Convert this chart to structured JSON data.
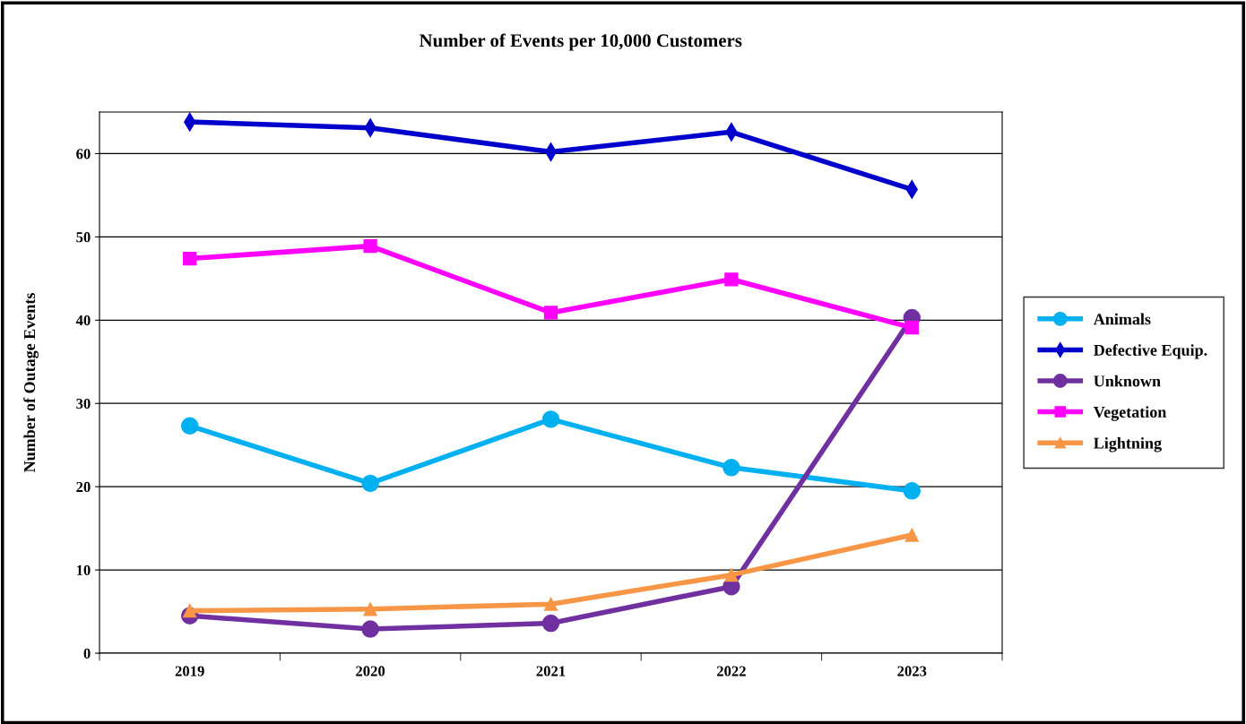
{
  "chart_data": {
    "type": "line",
    "title": "Number of Events per 10,000 Customers",
    "ylabel": "Number of Outage Events",
    "categories": [
      "2019",
      "2020",
      "2021",
      "2022",
      "2023"
    ],
    "series": [
      {
        "name": "Animals",
        "color": "#00b0f0",
        "marker": "circle",
        "values": [
          27.3,
          20.4,
          28.1,
          22.3,
          19.5
        ]
      },
      {
        "name": "Defective Equip.",
        "color": "#0000cc",
        "marker": "diamond",
        "values": [
          63.8,
          63.1,
          60.2,
          62.6,
          55.7
        ]
      },
      {
        "name": "Unknown",
        "color": "#7030a0",
        "marker": "circle",
        "values": [
          4.5,
          2.9,
          3.6,
          8.0,
          40.3
        ]
      },
      {
        "name": "Vegetation",
        "color": "#ff00ff",
        "marker": "square",
        "values": [
          47.4,
          48.9,
          40.9,
          44.9,
          39.1
        ]
      },
      {
        "name": "Lightning",
        "color": "#f79646",
        "marker": "triangle",
        "values": [
          5.1,
          5.3,
          5.9,
          9.4,
          14.2
        ]
      }
    ],
    "ylim": [
      0,
      65
    ],
    "yticks": [
      0,
      10,
      20,
      30,
      40,
      50,
      60
    ],
    "grid": "y",
    "legend": "right",
    "line_style": "solid"
  }
}
